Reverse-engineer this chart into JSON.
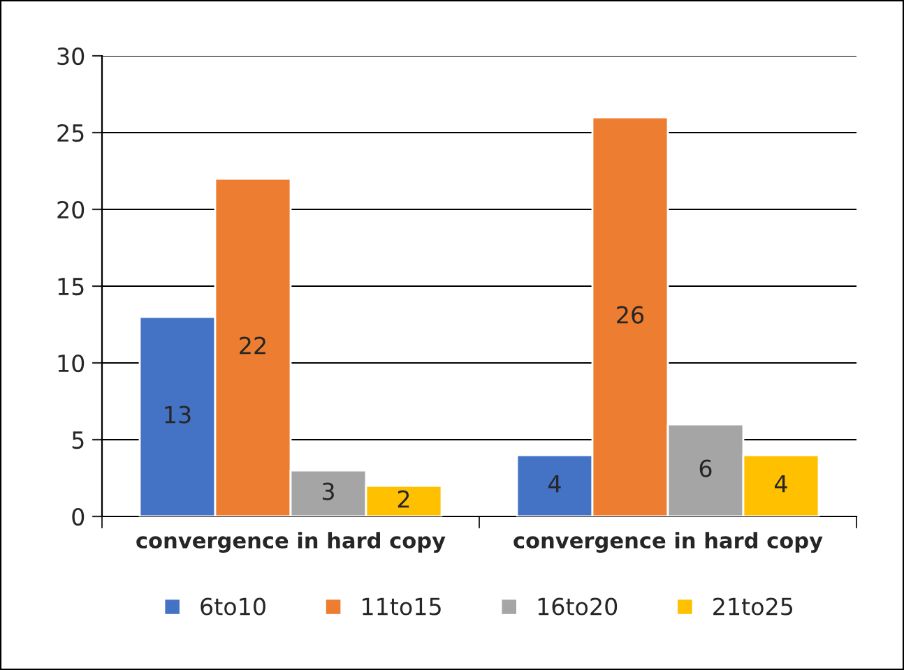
{
  "chart_data": {
    "type": "bar",
    "categories": [
      "convergence in hard copy",
      "convergence in hard copy"
    ],
    "series": [
      {
        "name": "6to10",
        "color": "#4472c4",
        "values": [
          13,
          4
        ]
      },
      {
        "name": "11to15",
        "color": "#ed7d31",
        "values": [
          22,
          26
        ]
      },
      {
        "name": "16to20",
        "color": "#a5a5a5",
        "values": [
          3,
          6
        ]
      },
      {
        "name": "21to25",
        "color": "#ffc000",
        "values": [
          2,
          4
        ]
      }
    ],
    "ylim": [
      0,
      30
    ],
    "yticks": [
      0,
      5,
      10,
      15,
      20,
      25,
      30
    ],
    "grid": "y",
    "legend": "bottom",
    "data_labels": true
  }
}
